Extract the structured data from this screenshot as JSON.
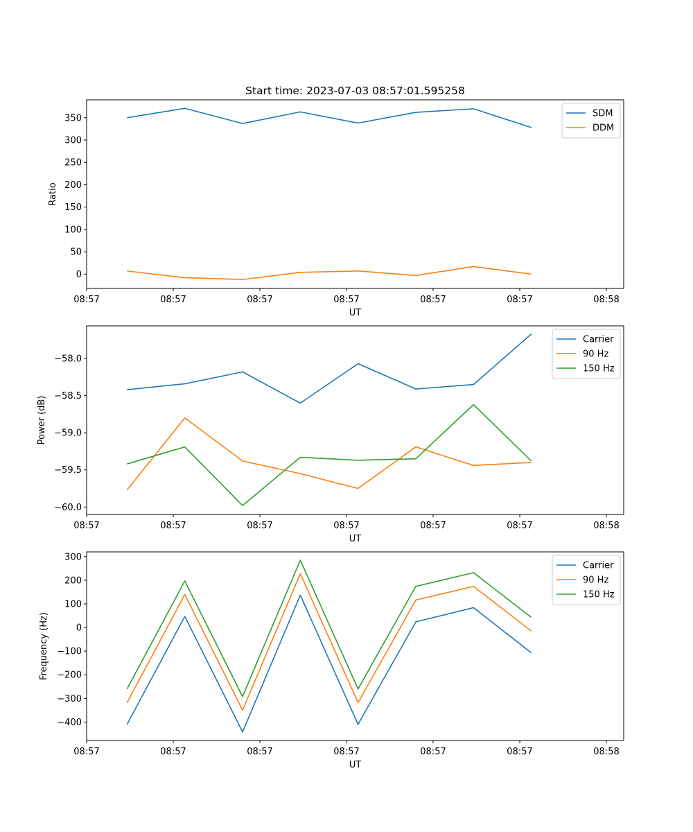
{
  "title": "Start time: 2023-07-03 08:57:01.595258",
  "colors": {
    "blue": "#1f77b4",
    "orange": "#ff7f0e",
    "green": "#2ca02c"
  },
  "chart_data": [
    {
      "type": "line",
      "name": "ratio",
      "title": "Start time: 2023-07-03 08:57:01.595258",
      "xlabel": "UT",
      "ylabel": "Ratio",
      "xlim": [
        -0.7,
        8.6
      ],
      "ylim": [
        -32,
        390
      ],
      "grid": false,
      "legend": "top-right",
      "x": [
        0,
        1,
        2,
        3,
        4,
        5,
        6,
        7
      ],
      "xticks": [
        -0.7,
        0.8,
        2.3,
        3.8,
        5.3,
        6.8,
        8.3
      ],
      "xtick_labels": [
        "08:57",
        "08:57",
        "08:57",
        "08:57",
        "08:57",
        "08:57",
        "08:58"
      ],
      "yticks": [
        0,
        50,
        100,
        150,
        200,
        250,
        300,
        350
      ],
      "ytick_labels": [
        "0",
        "50",
        "100",
        "150",
        "200",
        "250",
        "300",
        "350"
      ],
      "series": [
        {
          "name": "SDM",
          "color": "#1f77b4",
          "values": [
            350,
            371,
            337,
            363,
            338,
            362,
            370,
            328
          ]
        },
        {
          "name": "DDM",
          "color": "#ff7f0e",
          "values": [
            7,
            -8,
            -12,
            4,
            7,
            -3,
            17,
            0
          ]
        }
      ]
    },
    {
      "type": "line",
      "name": "power",
      "title": "",
      "xlabel": "UT",
      "ylabel": "Power (dB)",
      "xlim": [
        -0.7,
        8.6
      ],
      "ylim": [
        -60.1,
        -57.56
      ],
      "grid": false,
      "legend": "top-right",
      "x": [
        0,
        1,
        2,
        3,
        4,
        5,
        6,
        7
      ],
      "xticks": [
        -0.7,
        0.8,
        2.3,
        3.8,
        5.3,
        6.8,
        8.3
      ],
      "xtick_labels": [
        "08:57",
        "08:57",
        "08:57",
        "08:57",
        "08:57",
        "08:57",
        "08:58"
      ],
      "yticks": [
        -60.0,
        -59.5,
        -59.0,
        -58.5,
        -58.0
      ],
      "ytick_labels": [
        "−60.0",
        "−59.5",
        "−59.0",
        "−58.5",
        "−58.0"
      ],
      "series": [
        {
          "name": "Carrier",
          "color": "#1f77b4",
          "values": [
            -58.42,
            -58.34,
            -58.18,
            -58.6,
            -58.07,
            -58.41,
            -58.35,
            -57.67
          ]
        },
        {
          "name": "90 Hz",
          "color": "#ff7f0e",
          "values": [
            -59.77,
            -58.8,
            -59.38,
            -59.55,
            -59.75,
            -59.19,
            -59.44,
            -59.4
          ]
        },
        {
          "name": "150 Hz",
          "color": "#2ca02c",
          "values": [
            -59.42,
            -59.19,
            -59.98,
            -59.33,
            -59.37,
            -59.35,
            -58.62,
            -59.38
          ]
        }
      ]
    },
    {
      "type": "line",
      "name": "frequency",
      "title": "",
      "xlabel": "UT",
      "ylabel": "Frequency (Hz)",
      "xlim": [
        -0.7,
        8.6
      ],
      "ylim": [
        -478,
        320
      ],
      "grid": false,
      "legend": "top-right",
      "x": [
        0,
        1,
        2,
        3,
        4,
        5,
        6,
        7
      ],
      "xticks": [
        -0.7,
        0.8,
        2.3,
        3.8,
        5.3,
        6.8,
        8.3
      ],
      "xtick_labels": [
        "08:57",
        "08:57",
        "08:57",
        "08:57",
        "08:57",
        "08:57",
        "08:58"
      ],
      "yticks": [
        -400,
        -300,
        -200,
        -100,
        0,
        100,
        200,
        300
      ],
      "ytick_labels": [
        "−400",
        "−300",
        "−200",
        "−100",
        "0",
        "100",
        "200",
        "300"
      ],
      "series": [
        {
          "name": "Carrier",
          "color": "#1f77b4",
          "values": [
            -410,
            47,
            -442,
            137,
            -410,
            24,
            84,
            -107
          ]
        },
        {
          "name": "90 Hz",
          "color": "#ff7f0e",
          "values": [
            -318,
            140,
            -350,
            228,
            -318,
            116,
            174,
            -15
          ]
        },
        {
          "name": "150 Hz",
          "color": "#2ca02c",
          "values": [
            -260,
            197,
            -292,
            285,
            -260,
            174,
            232,
            43
          ]
        }
      ]
    }
  ]
}
